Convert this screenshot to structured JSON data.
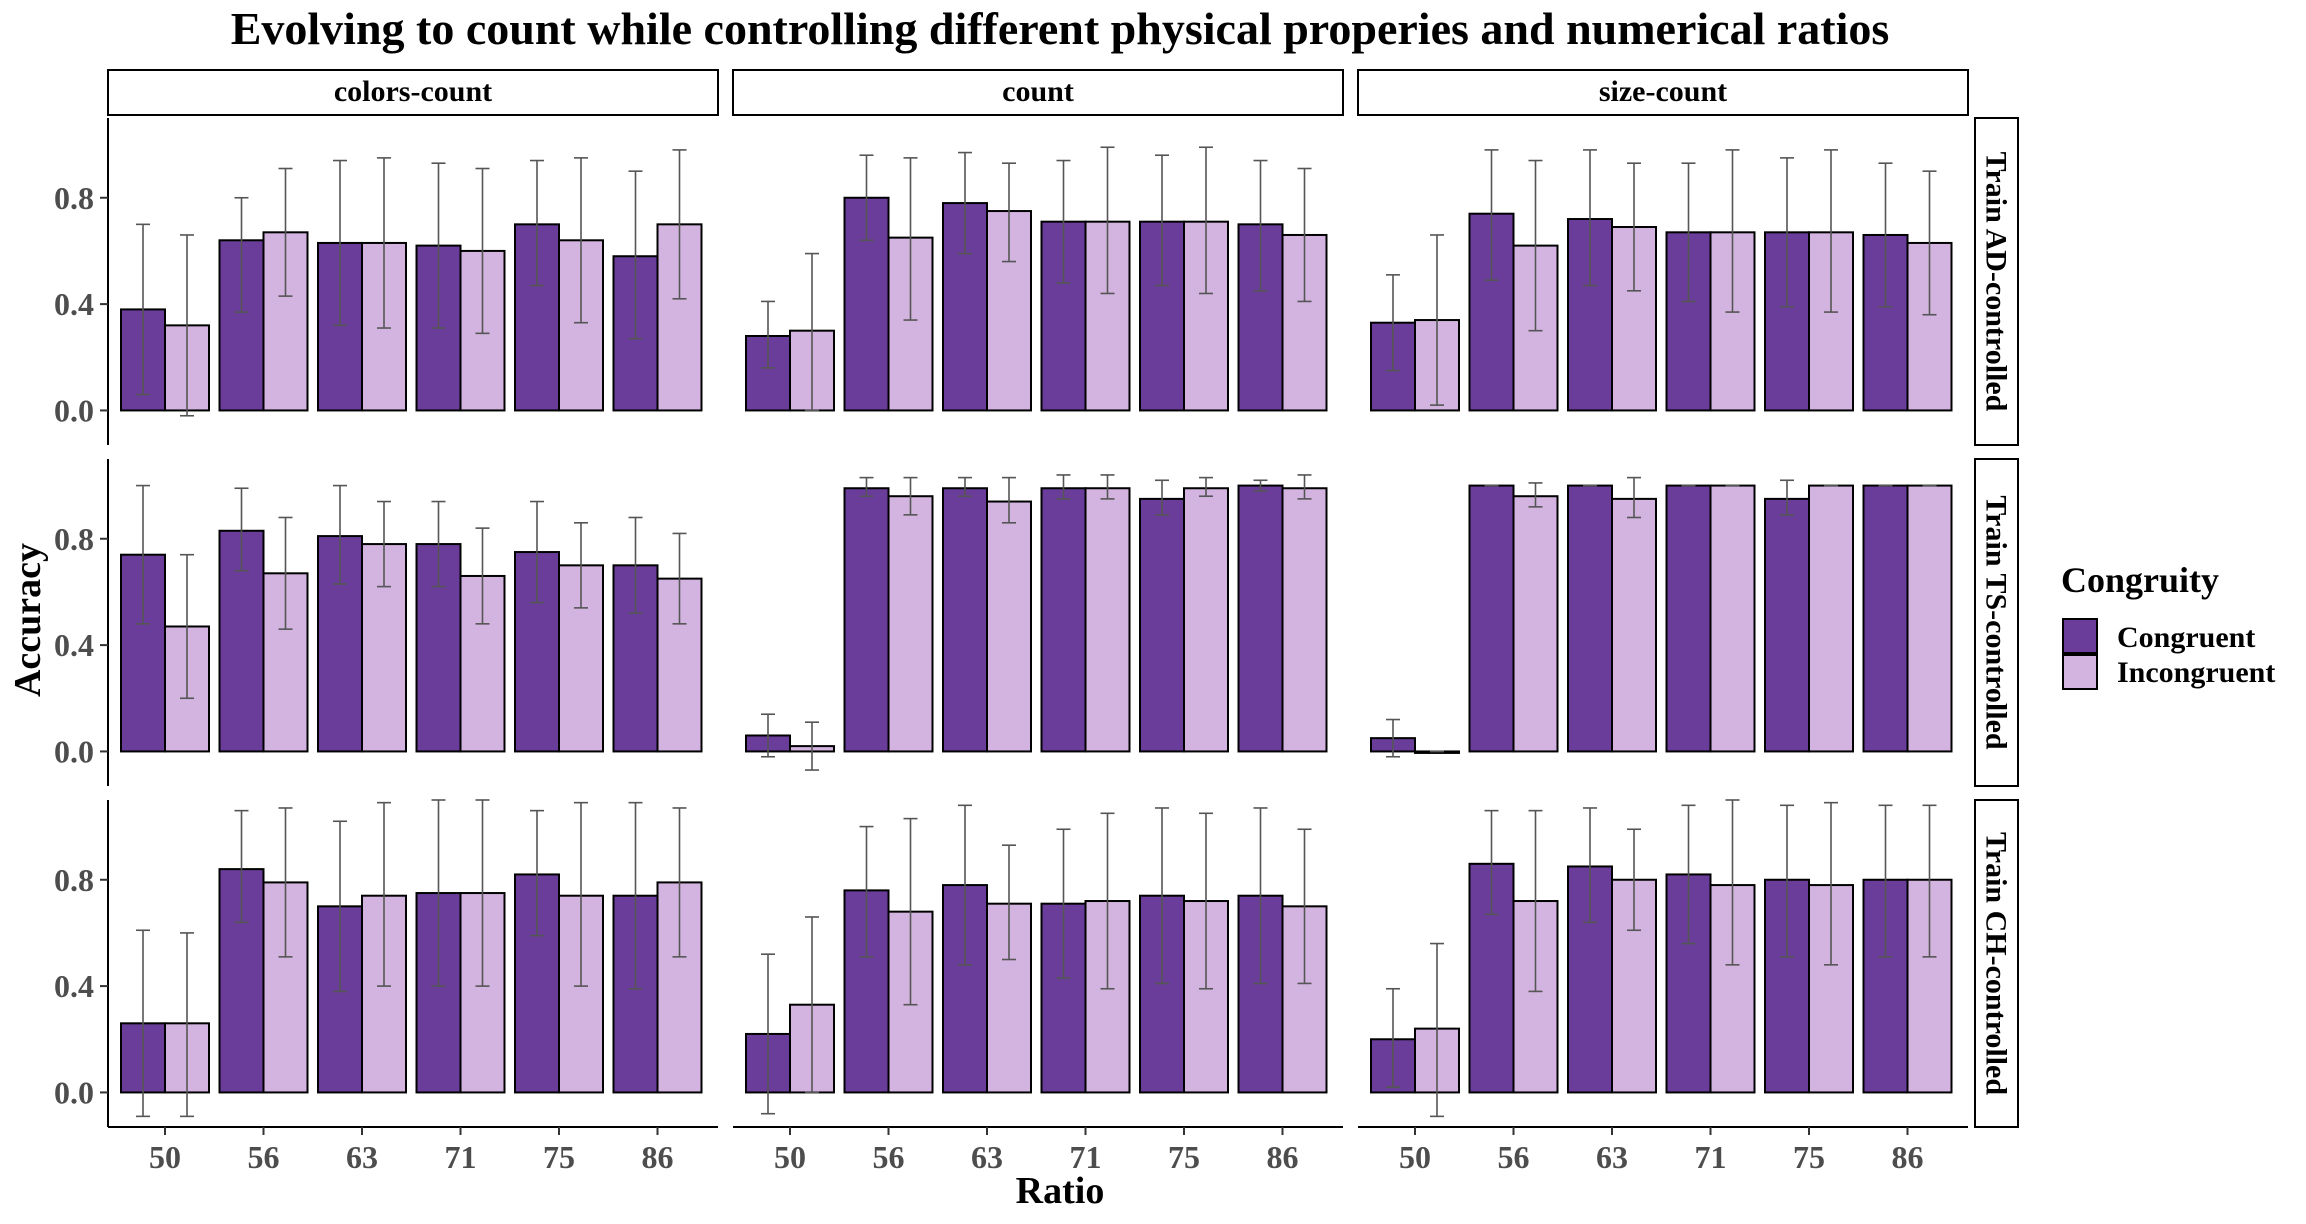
{
  "chart_data": {
    "type": "bar",
    "title": "Evolving to count while controlling different physical properies and numerical ratios",
    "xlabel": "Ratio",
    "ylabel": "Accuracy",
    "ylim": [
      -0.13,
      1.1
    ],
    "yticks": [
      "0.0",
      "0.4",
      "0.8"
    ],
    "categories": [
      "50",
      "56",
      "63",
      "71",
      "75",
      "86"
    ],
    "columns": [
      "colors-count",
      "count",
      "size-count"
    ],
    "rows": [
      "Train AD-controlled",
      "Train TS-controlled",
      "Train CH-controlled"
    ],
    "legend": {
      "title": "Congruity",
      "placement": "right",
      "entries": [
        {
          "name": "Congruent",
          "color": "#6a3d9a"
        },
        {
          "name": "Incongruent",
          "color": "#d3b4e0"
        }
      ]
    },
    "grid": false,
    "error_bars": "mean ± sd",
    "panels": [
      {
        "row": "Train AD-controlled",
        "column": "colors-count",
        "series": [
          {
            "name": "Congruent",
            "values": [
              0.38,
              0.64,
              0.63,
              0.62,
              0.7,
              0.58
            ],
            "err_low": [
              0.06,
              0.37,
              0.32,
              0.31,
              0.47,
              0.27
            ],
            "err_high": [
              0.7,
              0.8,
              0.94,
              0.93,
              0.94,
              0.9
            ]
          },
          {
            "name": "Incongruent",
            "values": [
              0.32,
              0.67,
              0.63,
              0.6,
              0.64,
              0.7
            ],
            "err_low": [
              -0.02,
              0.43,
              0.31,
              0.29,
              0.33,
              0.42
            ],
            "err_high": [
              0.66,
              0.91,
              0.95,
              0.91,
              0.95,
              0.98
            ]
          }
        ]
      },
      {
        "row": "Train AD-controlled",
        "column": "count",
        "series": [
          {
            "name": "Congruent",
            "values": [
              0.28,
              0.8,
              0.78,
              0.71,
              0.71,
              0.7
            ],
            "err_low": [
              0.16,
              0.64,
              0.59,
              0.48,
              0.47,
              0.45
            ],
            "err_high": [
              0.41,
              0.96,
              0.97,
              0.94,
              0.96,
              0.94
            ]
          },
          {
            "name": "Incongruent",
            "values": [
              0.3,
              0.65,
              0.75,
              0.71,
              0.71,
              0.66
            ],
            "err_low": [
              0.0,
              0.34,
              0.56,
              0.44,
              0.44,
              0.41
            ],
            "err_high": [
              0.59,
              0.95,
              0.93,
              0.99,
              0.99,
              0.91
            ]
          }
        ]
      },
      {
        "row": "Train AD-controlled",
        "column": "size-count",
        "series": [
          {
            "name": "Congruent",
            "values": [
              0.33,
              0.74,
              0.72,
              0.67,
              0.67,
              0.66
            ],
            "err_low": [
              0.15,
              0.49,
              0.47,
              0.41,
              0.39,
              0.39
            ],
            "err_high": [
              0.51,
              0.98,
              0.98,
              0.93,
              0.95,
              0.93
            ]
          },
          {
            "name": "Incongruent",
            "values": [
              0.34,
              0.62,
              0.69,
              0.67,
              0.67,
              0.63
            ],
            "err_low": [
              0.02,
              0.3,
              0.45,
              0.37,
              0.37,
              0.36
            ],
            "err_high": [
              0.66,
              0.94,
              0.93,
              0.98,
              0.98,
              0.9
            ]
          }
        ]
      },
      {
        "row": "Train TS-controlled",
        "column": "colors-count",
        "series": [
          {
            "name": "Congruent",
            "values": [
              0.74,
              0.83,
              0.81,
              0.78,
              0.75,
              0.7
            ],
            "err_low": [
              0.48,
              0.68,
              0.63,
              0.62,
              0.56,
              0.52
            ],
            "err_high": [
              1.0,
              0.99,
              1.0,
              0.94,
              0.94,
              0.88
            ]
          },
          {
            "name": "Incongruent",
            "values": [
              0.47,
              0.67,
              0.78,
              0.66,
              0.7,
              0.65
            ],
            "err_low": [
              0.2,
              0.46,
              0.62,
              0.48,
              0.54,
              0.48
            ],
            "err_high": [
              0.74,
              0.88,
              0.94,
              0.84,
              0.86,
              0.82
            ]
          }
        ]
      },
      {
        "row": "Train TS-controlled",
        "column": "count",
        "series": [
          {
            "name": "Congruent",
            "values": [
              0.06,
              0.99,
              0.99,
              0.99,
              0.95,
              1.0
            ],
            "err_low": [
              -0.02,
              0.96,
              0.96,
              0.95,
              0.89,
              0.98
            ],
            "err_high": [
              0.14,
              1.03,
              1.03,
              1.04,
              1.02,
              1.02
            ]
          },
          {
            "name": "Incongruent",
            "values": [
              0.02,
              0.96,
              0.94,
              0.99,
              0.99,
              0.99
            ],
            "err_low": [
              -0.07,
              0.89,
              0.86,
              0.95,
              0.96,
              0.95
            ],
            "err_high": [
              0.11,
              1.03,
              1.03,
              1.04,
              1.03,
              1.04
            ]
          }
        ]
      },
      {
        "row": "Train TS-controlled",
        "column": "size-count",
        "series": [
          {
            "name": "Congruent",
            "values": [
              0.05,
              1.0,
              1.0,
              1.0,
              0.95,
              1.0
            ],
            "err_low": [
              -0.02,
              1.0,
              1.0,
              1.0,
              0.89,
              1.0
            ],
            "err_high": [
              0.12,
              1.0,
              1.0,
              1.0,
              1.02,
              1.0
            ]
          },
          {
            "name": "Incongruent",
            "values": [
              0.0,
              0.96,
              0.95,
              1.0,
              1.0,
              1.0
            ],
            "err_low": [
              0.0,
              0.92,
              0.88,
              1.0,
              1.0,
              1.0
            ],
            "err_high": [
              0.0,
              1.01,
              1.03,
              1.0,
              1.0,
              1.0
            ]
          }
        ]
      },
      {
        "row": "Train CH-controlled",
        "column": "colors-count",
        "series": [
          {
            "name": "Congruent",
            "values": [
              0.26,
              0.84,
              0.7,
              0.75,
              0.82,
              0.74
            ],
            "err_low": [
              -0.09,
              0.64,
              0.38,
              0.4,
              0.59,
              0.39
            ],
            "err_high": [
              0.61,
              1.06,
              1.02,
              1.1,
              1.06,
              1.09
            ]
          },
          {
            "name": "Incongruent",
            "values": [
              0.26,
              0.79,
              0.74,
              0.75,
              0.74,
              0.79
            ],
            "err_low": [
              -0.09,
              0.51,
              0.4,
              0.4,
              0.4,
              0.51
            ],
            "err_high": [
              0.6,
              1.07,
              1.09,
              1.1,
              1.09,
              1.07
            ]
          }
        ]
      },
      {
        "row": "Train CH-controlled",
        "column": "count",
        "series": [
          {
            "name": "Congruent",
            "values": [
              0.22,
              0.76,
              0.78,
              0.71,
              0.74,
              0.74
            ],
            "err_low": [
              -0.08,
              0.51,
              0.48,
              0.43,
              0.41,
              0.41
            ],
            "err_high": [
              0.52,
              1.0,
              1.08,
              0.99,
              1.07,
              1.07
            ]
          },
          {
            "name": "Incongruent",
            "values": [
              0.33,
              0.68,
              0.71,
              0.72,
              0.72,
              0.7
            ],
            "err_low": [
              0.0,
              0.33,
              0.5,
              0.39,
              0.39,
              0.41
            ],
            "err_high": [
              0.66,
              1.03,
              0.93,
              1.05,
              1.05,
              0.99
            ]
          }
        ]
      },
      {
        "row": "Train CH-controlled",
        "column": "size-count",
        "series": [
          {
            "name": "Congruent",
            "values": [
              0.2,
              0.86,
              0.85,
              0.82,
              0.8,
              0.8
            ],
            "err_low": [
              0.02,
              0.67,
              0.64,
              0.56,
              0.51,
              0.51
            ],
            "err_high": [
              0.39,
              1.06,
              1.07,
              1.08,
              1.08,
              1.08
            ]
          },
          {
            "name": "Incongruent",
            "values": [
              0.24,
              0.72,
              0.8,
              0.78,
              0.78,
              0.8
            ],
            "err_low": [
              -0.09,
              0.38,
              0.61,
              0.48,
              0.48,
              0.51
            ],
            "err_high": [
              0.56,
              1.06,
              0.99,
              1.1,
              1.09,
              1.08
            ]
          }
        ]
      }
    ]
  }
}
